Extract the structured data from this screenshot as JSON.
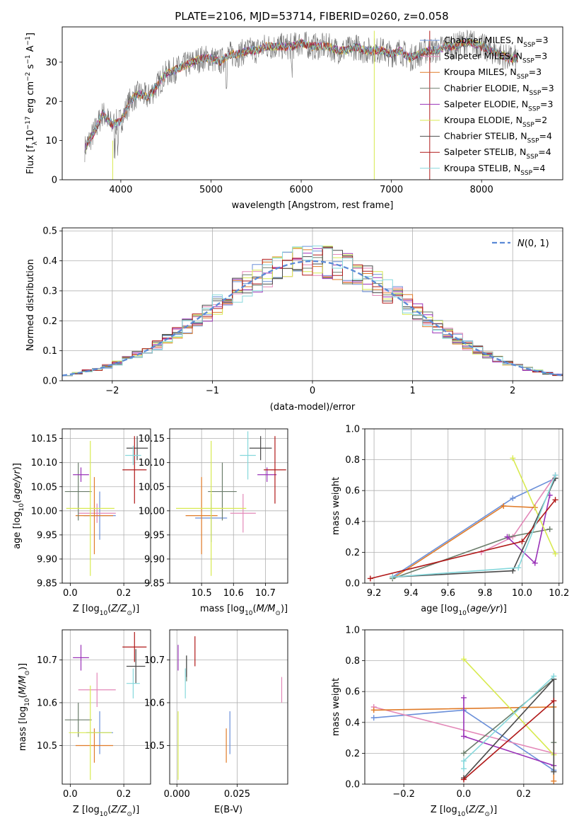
{
  "figure": {
    "title": "PLATE=2106, MJD=53714, FIBERID=0260, z=0.058"
  },
  "colors": {
    "Chabrier MILES": "#6a8fd9",
    "Salpeter MILES": "#e388b8",
    "Kroupa MILES": "#e07b28",
    "Chabrier ELODIE": "#6b7d6b",
    "Salpeter ELODIE": "#9a32b8",
    "Kroupa ELODIE": "#d8ea50",
    "Chabrier STELIB": "#4a4a4a",
    "Salpeter STELIB": "#b01818",
    "Kroupa STELIB": "#86d8dc"
  },
  "chart_data": [
    {
      "id": "spectrum",
      "type": "line",
      "title": "PLATE=2106, MJD=53714, FIBERID=0260, z=0.058",
      "xlabel": "wavelength [Angstrom, rest frame]",
      "ylabel": "Flux [f_λ 10^-17 erg cm^-2 s^-1 A^-1]",
      "xlim": [
        3350,
        8900
      ],
      "ylim": [
        0,
        39
      ],
      "xticks": [
        4000,
        5000,
        6000,
        7000,
        8000
      ],
      "yticks": [
        0,
        10,
        20,
        30
      ],
      "grid": false,
      "legend_position": "right",
      "x": [
        3600,
        3700,
        3800,
        3900,
        4000,
        4100,
        4200,
        4300,
        4400,
        4500,
        4600,
        4700,
        4800,
        4900,
        5000,
        5100,
        5200,
        5300,
        5400,
        5500,
        5600,
        5700,
        5800,
        5900,
        6000,
        6100,
        6200,
        6300,
        6400,
        6500,
        6600,
        6700,
        6800,
        6900,
        7000,
        7100,
        7200,
        7300,
        7400,
        7500,
        7600,
        7700,
        7800,
        7900,
        8000,
        8100,
        8200,
        8300,
        8400
      ],
      "y": [
        8,
        12,
        17,
        14,
        15,
        20,
        22,
        21,
        24,
        27,
        28,
        29,
        30,
        31,
        31,
        30,
        32,
        32,
        33,
        33,
        34,
        34,
        34,
        34,
        35,
        34,
        34,
        34,
        33,
        33,
        34,
        33,
        33,
        33,
        32,
        33,
        31,
        32,
        33,
        33,
        34,
        34,
        35,
        35,
        34,
        33,
        32,
        31,
        31
      ],
      "series": [
        {
          "name": "Chabrier MILES, N_SSP=3",
          "label_main": "Chabrier MILES, N",
          "label_sub": "SSP",
          "label_tail": "=3"
        },
        {
          "name": "Salpeter MILES, N_SSP=3",
          "label_main": "Salpeter MILES, N",
          "label_sub": "SSP",
          "label_tail": "=3"
        },
        {
          "name": "Kroupa MILES, N_SSP=3",
          "label_main": "Kroupa MILES, N",
          "label_sub": "SSP",
          "label_tail": "=3"
        },
        {
          "name": "Chabrier ELODIE, N_SSP=3",
          "label_main": "Chabrier ELODIE, N",
          "label_sub": "SSP",
          "label_tail": "=3"
        },
        {
          "name": "Salpeter ELODIE, N_SSP=3",
          "label_main": "Salpeter ELODIE, N",
          "label_sub": "SSP",
          "label_tail": "=3"
        },
        {
          "name": "Kroupa ELODIE, N_SSP=2",
          "label_main": "Kroupa ELODIE, N",
          "label_sub": "SSP",
          "label_tail": "=2"
        },
        {
          "name": "Chabrier STELIB, N_SSP=4",
          "label_main": "Chabrier STELIB, N",
          "label_sub": "SSP",
          "label_tail": "=4"
        },
        {
          "name": "Salpeter STELIB, N_SSP=4",
          "label_main": "Salpeter STELIB, N",
          "label_sub": "SSP",
          "label_tail": "=4"
        },
        {
          "name": "Kroupa STELIB, N_SSP=4",
          "label_main": "Kroupa STELIB, N",
          "label_sub": "SSP",
          "label_tail": "=4"
        }
      ]
    },
    {
      "id": "residuals",
      "type": "line",
      "xlabel": "(data-model)/error",
      "ylabel": "Normed distribution",
      "xlim": [
        -2.5,
        2.5
      ],
      "ylim": [
        0,
        0.51
      ],
      "xticks": [
        -2,
        -1,
        0,
        1,
        2
      ],
      "yticks": [
        0.0,
        0.1,
        0.2,
        0.3,
        0.4,
        0.5
      ],
      "grid": true,
      "legend_position": "top-right",
      "reference": {
        "name": "N(0,1)",
        "mean": 0,
        "sigma": 1
      }
    },
    {
      "id": "age-vs-Z",
      "type": "scatter",
      "xlabel": "Z [log10(Z/Z☉)]",
      "ylabel": "age [log10(age/yr)]",
      "xlim": [
        -0.03,
        0.3
      ],
      "ylim": [
        9.85,
        10.17
      ],
      "xticks": [
        0.0,
        0.2
      ],
      "yticks": [
        9.85,
        9.9,
        9.95,
        10.0,
        10.05,
        10.1,
        10.15
      ],
      "grid": true,
      "points": [
        {
          "series": "Chabrier MILES",
          "x": 0.11,
          "y": 9.99,
          "xerr": 0.06,
          "yerr": 0.05
        },
        {
          "series": "Salpeter MILES",
          "x": 0.1,
          "y": 9.995,
          "xerr": 0.07,
          "yerr": 0.02
        },
        {
          "series": "Kroupa MILES",
          "x": 0.09,
          "y": 9.99,
          "xerr": 0.07,
          "yerr": 0.08
        },
        {
          "series": "Chabrier ELODIE",
          "x": 0.03,
          "y": 10.04,
          "xerr": 0.05,
          "yerr": 0.06
        },
        {
          "series": "Salpeter ELODIE",
          "x": 0.04,
          "y": 10.075,
          "xerr": 0.03,
          "yerr": 0.015
        },
        {
          "series": "Kroupa ELODIE",
          "x": 0.075,
          "y": 10.005,
          "xerr": 0.09,
          "yerr": 0.14
        },
        {
          "series": "Chabrier STELIB",
          "x": 0.25,
          "y": 10.13,
          "xerr": 0.04,
          "yerr": 0.025
        },
        {
          "series": "Salpeter STELIB",
          "x": 0.24,
          "y": 10.085,
          "xerr": 0.045,
          "yerr": 0.07
        },
        {
          "series": "Kroupa STELIB",
          "x": 0.235,
          "y": 10.115,
          "xerr": 0.03,
          "yerr": 0.02
        }
      ]
    },
    {
      "id": "age-vs-mass",
      "type": "scatter",
      "xlabel": "mass [log10(M/M☉)]",
      "xlim": [
        10.4,
        10.77
      ],
      "ylim": [
        9.85,
        10.17
      ],
      "xticks": [
        10.5,
        10.6,
        10.7
      ],
      "yticks": [
        9.85,
        9.9,
        9.95,
        10.0,
        10.05,
        10.1,
        10.15
      ],
      "grid": true,
      "points": [
        {
          "series": "Chabrier MILES",
          "x": 10.53,
          "y": 9.985,
          "xerr": 0.05,
          "yerr": 0.05
        },
        {
          "series": "Salpeter MILES",
          "x": 10.63,
          "y": 9.995,
          "xerr": 0.04,
          "yerr": 0.04
        },
        {
          "series": "Kroupa MILES",
          "x": 10.5,
          "y": 9.99,
          "xerr": 0.05,
          "yerr": 0.08
        },
        {
          "series": "Chabrier ELODIE",
          "x": 10.565,
          "y": 10.04,
          "xerr": 0.045,
          "yerr": 0.06
        },
        {
          "series": "Salpeter ELODIE",
          "x": 10.705,
          "y": 10.075,
          "xerr": 0.03,
          "yerr": 0.015
        },
        {
          "series": "Kroupa ELODIE",
          "x": 10.53,
          "y": 10.005,
          "xerr": 0.11,
          "yerr": 0.14
        },
        {
          "series": "Chabrier STELIB",
          "x": 10.685,
          "y": 10.13,
          "xerr": 0.035,
          "yerr": 0.025
        },
        {
          "series": "Salpeter STELIB",
          "x": 10.73,
          "y": 10.085,
          "xerr": 0.035,
          "yerr": 0.07
        },
        {
          "series": "Kroupa STELIB",
          "x": 10.645,
          "y": 10.115,
          "xerr": 0.025,
          "yerr": 0.05
        }
      ]
    },
    {
      "id": "weight-vs-age",
      "type": "line",
      "xlabel": "age [log10(age/yr)]",
      "ylabel": "mass weight",
      "xlim": [
        9.15,
        10.22
      ],
      "ylim": [
        0,
        1.0
      ],
      "xticks": [
        9.2,
        9.4,
        9.6,
        9.8,
        10.0,
        10.2
      ],
      "yticks": [
        0.0,
        0.2,
        0.4,
        0.6,
        0.8,
        1.0
      ],
      "grid": true,
      "series": [
        {
          "name": "Chabrier MILES",
          "x": [
            9.3,
            9.95,
            10.18
          ],
          "y": [
            0.04,
            0.55,
            0.68
          ]
        },
        {
          "name": "Salpeter MILES",
          "x": [
            9.78,
            9.95,
            10.18
          ],
          "y": [
            0.2,
            0.3,
            0.7
          ]
        },
        {
          "name": "Kroupa MILES",
          "x": [
            9.3,
            9.9,
            10.07
          ],
          "y": [
            0.03,
            0.5,
            0.49
          ]
        },
        {
          "name": "Chabrier ELODIE",
          "x": [
            9.3,
            9.93,
            10.15
          ],
          "y": [
            0.03,
            0.3,
            0.35
          ]
        },
        {
          "name": "Salpeter ELODIE",
          "x": [
            9.92,
            10.07,
            10.15
          ],
          "y": [
            0.3,
            0.13,
            0.57
          ]
        },
        {
          "name": "Kroupa ELODIE",
          "x": [
            9.95,
            10.18
          ],
          "y": [
            0.81,
            0.19
          ]
        },
        {
          "name": "Chabrier STELIB",
          "x": [
            9.3,
            9.95,
            10.18
          ],
          "y": [
            0.04,
            0.08,
            0.68
          ]
        },
        {
          "name": "Salpeter STELIB",
          "x": [
            9.18,
            10.0,
            10.18
          ],
          "y": [
            0.03,
            0.27,
            0.54
          ]
        },
        {
          "name": "Kroupa STELIB",
          "x": [
            9.3,
            9.98,
            10.18
          ],
          "y": [
            0.04,
            0.1,
            0.7
          ]
        }
      ]
    },
    {
      "id": "mass-vs-Z",
      "type": "scatter",
      "xlabel": "Z [log10(Z/Z☉)]",
      "ylabel": "mass [log10(M/M☉)]",
      "xlim": [
        -0.03,
        0.3
      ],
      "ylim": [
        10.41,
        10.77
      ],
      "xticks": [
        0.0,
        0.2
      ],
      "yticks": [
        10.5,
        10.6,
        10.7
      ],
      "grid": true,
      "points": [
        {
          "series": "Chabrier MILES",
          "x": 0.11,
          "y": 10.53,
          "xerr": 0.05,
          "yerr": 0.05
        },
        {
          "series": "Salpeter MILES",
          "x": 0.1,
          "y": 10.63,
          "xerr": 0.07,
          "yerr": 0.04
        },
        {
          "series": "Kroupa MILES",
          "x": 0.09,
          "y": 10.5,
          "xerr": 0.07,
          "yerr": 0.04
        },
        {
          "series": "Chabrier ELODIE",
          "x": 0.03,
          "y": 10.56,
          "xerr": 0.05,
          "yerr": 0.04
        },
        {
          "series": "Salpeter ELODIE",
          "x": 0.04,
          "y": 10.705,
          "xerr": 0.03,
          "yerr": 0.03
        },
        {
          "series": "Kroupa ELODIE",
          "x": 0.075,
          "y": 10.53,
          "xerr": 0.08,
          "yerr": 0.11
        },
        {
          "series": "Chabrier STELIB",
          "x": 0.245,
          "y": 10.685,
          "xerr": 0.035,
          "yerr": 0.04
        },
        {
          "series": "Salpeter STELIB",
          "x": 0.24,
          "y": 10.73,
          "xerr": 0.045,
          "yerr": 0.035
        },
        {
          "series": "Kroupa STELIB",
          "x": 0.235,
          "y": 10.645,
          "xerr": 0.025,
          "yerr": 0.035
        }
      ]
    },
    {
      "id": "mass-vs-EBV",
      "type": "scatter",
      "xlabel": "E(B-V)",
      "xlim": [
        -0.003,
        0.046
      ],
      "ylim": [
        10.41,
        10.77
      ],
      "xticks": [
        0.0,
        0.025
      ],
      "yticks": [
        10.5,
        10.6,
        10.7
      ],
      "grid": true,
      "points": [
        {
          "series": "Chabrier MILES",
          "x": 0.022,
          "y": 10.53,
          "yerr": 0.05
        },
        {
          "series": "Salpeter MILES",
          "x": 0.0435,
          "y": 10.63,
          "yerr": 0.03
        },
        {
          "series": "Kroupa MILES",
          "x": 0.0205,
          "y": 10.5,
          "yerr": 0.04
        },
        {
          "series": "Chabrier ELODIE",
          "x": 0.004,
          "y": 10.68,
          "yerr": 0.03
        },
        {
          "series": "Salpeter ELODIE",
          "x": 0.0005,
          "y": 10.705,
          "yerr": 0.03
        },
        {
          "series": "Kroupa ELODIE",
          "x": 0.0005,
          "y": 10.5,
          "yerr": 0.08
        },
        {
          "series": "Chabrier STELIB",
          "x": 0.004,
          "y": 10.685,
          "yerr": 0.025
        },
        {
          "series": "Salpeter STELIB",
          "x": 0.0075,
          "y": 10.72,
          "yerr": 0.035
        },
        {
          "series": "Kroupa STELIB",
          "x": 0.0035,
          "y": 10.645,
          "yerr": 0.035
        }
      ]
    },
    {
      "id": "weight-vs-Z",
      "type": "line",
      "xlabel": "Z [log10(Z/Z☉)]",
      "ylabel": "mass weight",
      "xlim": [
        -0.33,
        0.33
      ],
      "ylim": [
        0,
        1.0
      ],
      "xticks": [
        -0.2,
        0.0,
        0.2
      ],
      "yticks": [
        0.0,
        0.2,
        0.4,
        0.6,
        0.8,
        1.0
      ],
      "grid": true,
      "series": [
        {
          "name": "Chabrier MILES",
          "x": [
            -0.3,
            0.0,
            0.3
          ],
          "y": [
            0.43,
            0.48,
            0.09
          ]
        },
        {
          "name": "Salpeter MILES",
          "x": [
            -0.3,
            0.3
          ],
          "y": [
            0.5,
            0.2
          ]
        },
        {
          "name": "Kroupa MILES",
          "x": [
            -0.3,
            0.3,
            0.3
          ],
          "y": [
            0.48,
            0.5,
            0.02
          ]
        },
        {
          "name": "Chabrier ELODIE",
          "x": [
            0.0,
            0.3,
            0.3
          ],
          "y": [
            0.2,
            0.68,
            0.27
          ]
        },
        {
          "name": "Salpeter ELODIE",
          "x": [
            0.0,
            0.0,
            0.3
          ],
          "y": [
            0.56,
            0.31,
            0.12
          ]
        },
        {
          "name": "Kroupa ELODIE",
          "x": [
            0.0,
            0.3
          ],
          "y": [
            0.81,
            0.19
          ]
        },
        {
          "name": "Chabrier STELIB",
          "x": [
            0.0,
            0.3,
            0.3
          ],
          "y": [
            0.04,
            0.68,
            0.08
          ]
        },
        {
          "name": "Salpeter STELIB",
          "x": [
            0.0,
            0.3
          ],
          "y": [
            0.03,
            0.54
          ]
        },
        {
          "name": "Kroupa STELIB",
          "x": [
            0.0,
            0.0,
            0.3
          ],
          "y": [
            0.1,
            0.15,
            0.7
          ]
        }
      ]
    }
  ]
}
